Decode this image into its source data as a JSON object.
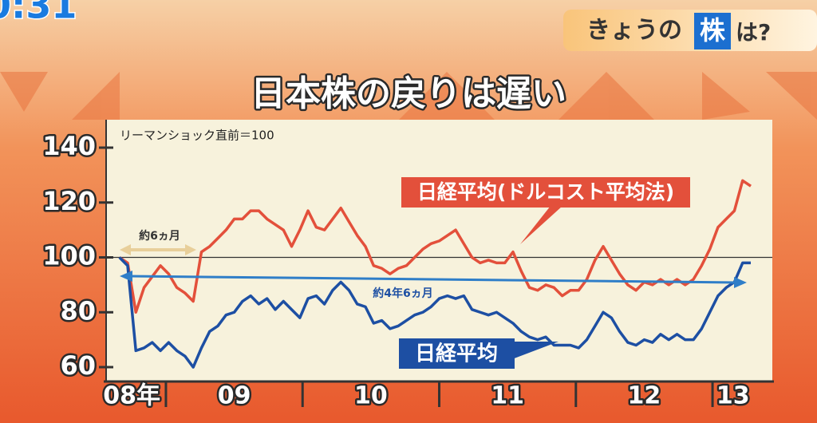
{
  "screen": {
    "clock": "0:31",
    "banner": {
      "prefix": "きょうの",
      "highlight": "株",
      "suffix": "は?"
    }
  },
  "chart_data": {
    "type": "line",
    "title": "日本株の戻りは遅い",
    "subtitle": "リーマンショック直前＝100",
    "annotations": [
      "約6ヵ月",
      "約4年6ヵ月"
    ],
    "reference_line": 100,
    "x": [
      2008.66,
      2008.72,
      2008.78,
      2008.84,
      2008.9,
      2008.96,
      2009.02,
      2009.08,
      2009.14,
      2009.2,
      2009.26,
      2009.32,
      2009.38,
      2009.44,
      2009.5,
      2009.56,
      2009.62,
      2009.68,
      2009.74,
      2009.8,
      2009.86,
      2009.92,
      2009.98,
      2010.04,
      2010.1,
      2010.16,
      2010.22,
      2010.28,
      2010.34,
      2010.4,
      2010.46,
      2010.52,
      2010.58,
      2010.64,
      2010.7,
      2010.76,
      2010.82,
      2010.88,
      2010.94,
      2011.0,
      2011.06,
      2011.12,
      2011.18,
      2011.24,
      2011.3,
      2011.36,
      2011.42,
      2011.48,
      2011.54,
      2011.6,
      2011.66,
      2011.72,
      2011.78,
      2011.84,
      2011.9,
      2011.96,
      2012.02,
      2012.08,
      2012.14,
      2012.2,
      2012.26,
      2012.32,
      2012.38,
      2012.44,
      2012.5,
      2012.56,
      2012.62,
      2012.68,
      2012.74,
      2012.8,
      2012.86,
      2012.92,
      2012.98,
      2013.04,
      2013.1,
      2013.16,
      2013.22,
      2013.28
    ],
    "series": [
      {
        "name": "日経平均(ドルコスト平均法)",
        "color": "#e3503b",
        "values": [
          100,
          98,
          80,
          89,
          93,
          97,
          94,
          89,
          87,
          84,
          102,
          104,
          107,
          110,
          114,
          114,
          117,
          117,
          114,
          112,
          110,
          104,
          110,
          117,
          111,
          110,
          114,
          118,
          113,
          108,
          104,
          97,
          96,
          94,
          96,
          97,
          100,
          103,
          105,
          106,
          108,
          110,
          105,
          100,
          98,
          99,
          98,
          98,
          102,
          95,
          89,
          88,
          90,
          89,
          86,
          88,
          88,
          92,
          99,
          104,
          99,
          94,
          90,
          88,
          91,
          90,
          92,
          90,
          92,
          90,
          92,
          97,
          103,
          111,
          114,
          117,
          128,
          126
        ]
      },
      {
        "name": "日経平均",
        "color": "#1d4fa3",
        "values": [
          100,
          97,
          66,
          67,
          69,
          66,
          69,
          66,
          64,
          60,
          67,
          73,
          75,
          79,
          80,
          84,
          86,
          83,
          85,
          81,
          84,
          81,
          78,
          85,
          86,
          83,
          88,
          91,
          88,
          83,
          82,
          76,
          77,
          74,
          75,
          77,
          79,
          80,
          82,
          85,
          86,
          85,
          86,
          81,
          80,
          79,
          80,
          78,
          76,
          73,
          71,
          70,
          71,
          68,
          68,
          68,
          67,
          70,
          75,
          80,
          78,
          73,
          69,
          68,
          70,
          69,
          72,
          70,
          72,
          70,
          70,
          74,
          80,
          86,
          89,
          91,
          98,
          98
        ]
      }
    ],
    "xlim": [
      2008.65,
      2013.42
    ],
    "xticks": [
      {
        "value": 2008.75,
        "label": "08年"
      },
      {
        "value": 2009.5,
        "label": "09"
      },
      {
        "value": 2010.5,
        "label": "10"
      },
      {
        "value": 2011.5,
        "label": "11"
      },
      {
        "value": 2012.5,
        "label": "12"
      },
      {
        "value": 2013.15,
        "label": "13"
      }
    ],
    "xdividers": [
      2009,
      2010,
      2011,
      2012,
      2013
    ],
    "ylim": [
      58,
      146
    ],
    "yticks": [
      60,
      80,
      100,
      120,
      140
    ]
  }
}
